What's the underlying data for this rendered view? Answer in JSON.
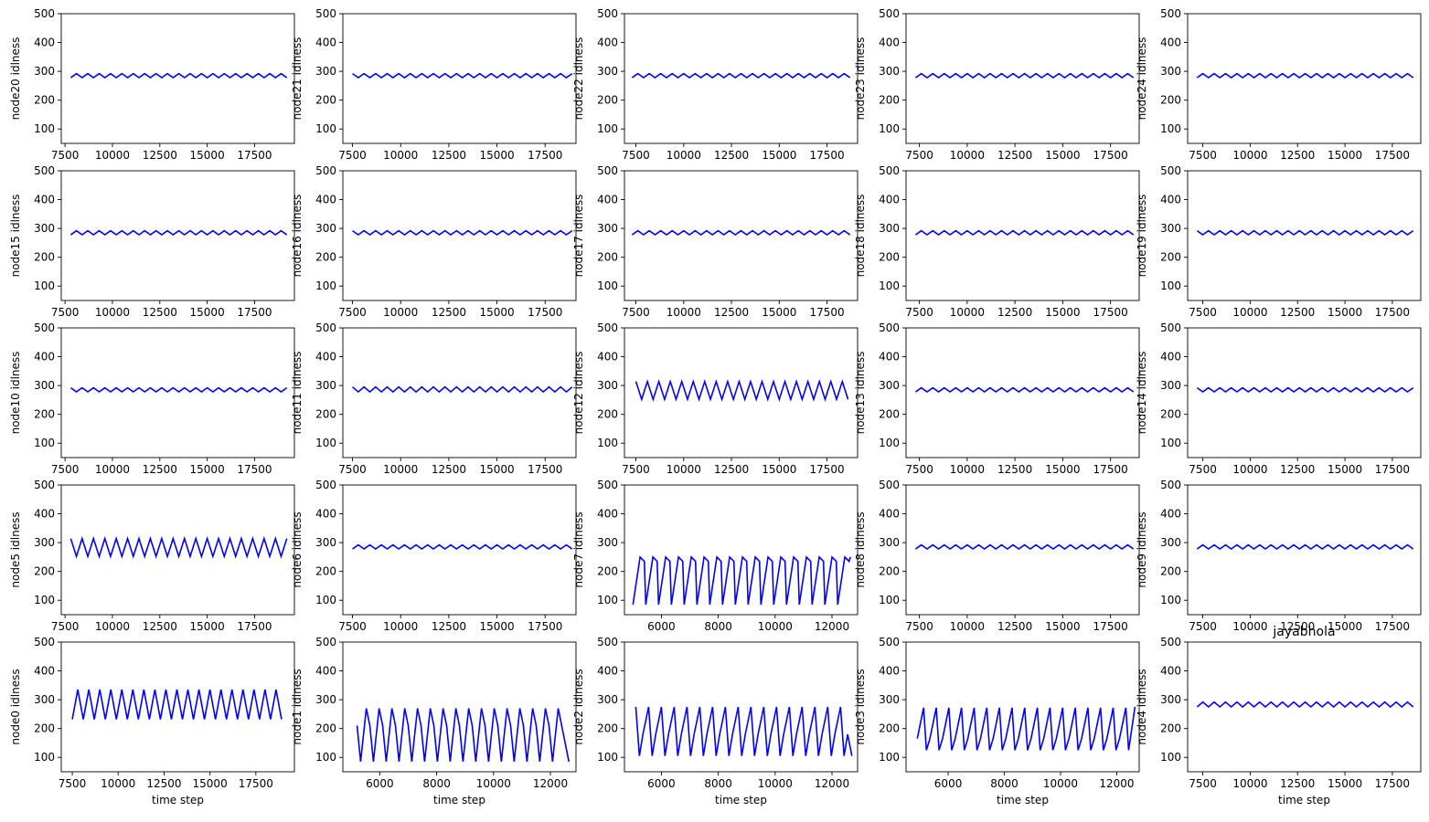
{
  "figure": {
    "line_color": "#0000ff",
    "axis_color": "#000000",
    "background": "#ffffff"
  },
  "chart_data": [
    {
      "type": "line",
      "row": 0,
      "col": 0,
      "ylabel": "node20 idlness",
      "xlabel": "",
      "title": "",
      "xlim": [
        7300,
        19600
      ],
      "xticks": [
        7500,
        10000,
        12500,
        15000,
        17500
      ],
      "ylim": [
        50,
        500
      ],
      "yticks": [
        100,
        200,
        300,
        400,
        500
      ],
      "pattern": {
        "x_start": 7800,
        "x_end": 19400,
        "cycle": 600,
        "y_low": 278,
        "y_high": 292,
        "first": "low",
        "last": "low"
      }
    },
    {
      "type": "line",
      "row": 0,
      "col": 1,
      "ylabel": "node21 idlness",
      "xlabel": "",
      "title": "",
      "xlim": [
        7000,
        19100
      ],
      "xticks": [
        7500,
        10000,
        12500,
        15000,
        17500
      ],
      "ylim": [
        50,
        500
      ],
      "yticks": [
        100,
        200,
        300,
        400,
        500
      ],
      "pattern": {
        "x_start": 7500,
        "x_end": 18900,
        "cycle": 600,
        "y_low": 278,
        "y_high": 292,
        "first": "high",
        "last": "high"
      }
    },
    {
      "type": "line",
      "row": 0,
      "col": 2,
      "ylabel": "node22 idlness",
      "xlabel": "",
      "title": "",
      "xlim": [
        6900,
        19100
      ],
      "xticks": [
        7500,
        10000,
        12500,
        15000,
        17500
      ],
      "ylim": [
        50,
        500
      ],
      "yticks": [
        100,
        200,
        300,
        400,
        500
      ],
      "pattern": {
        "x_start": 7300,
        "x_end": 18800,
        "cycle": 600,
        "y_low": 278,
        "y_high": 292,
        "first": "low",
        "last": "low"
      }
    },
    {
      "type": "line",
      "row": 0,
      "col": 3,
      "ylabel": "node23 idlness",
      "xlabel": "",
      "title": "",
      "xlim": [
        6800,
        19000
      ],
      "xticks": [
        7500,
        10000,
        12500,
        15000,
        17500
      ],
      "ylim": [
        50,
        500
      ],
      "yticks": [
        100,
        200,
        300,
        400,
        500
      ],
      "pattern": {
        "x_start": 7300,
        "x_end": 18700,
        "cycle": 600,
        "y_low": 278,
        "y_high": 292,
        "first": "low",
        "last": "low"
      }
    },
    {
      "type": "line",
      "row": 0,
      "col": 4,
      "ylabel": "node24 idlness",
      "xlabel": "",
      "title": "",
      "xlim": [
        6700,
        19000
      ],
      "xticks": [
        7500,
        10000,
        12500,
        15000,
        17500
      ],
      "ylim": [
        50,
        500
      ],
      "yticks": [
        100,
        200,
        300,
        400,
        500
      ],
      "pattern": {
        "x_start": 7200,
        "x_end": 18700,
        "cycle": 600,
        "y_low": 278,
        "y_high": 292,
        "first": "low",
        "last": "low"
      }
    },
    {
      "type": "line",
      "row": 1,
      "col": 0,
      "ylabel": "node15 idlness",
      "xlabel": "",
      "title": "",
      "xlim": [
        7300,
        19600
      ],
      "xticks": [
        7500,
        10000,
        12500,
        15000,
        17500
      ],
      "ylim": [
        50,
        500
      ],
      "yticks": [
        100,
        200,
        300,
        400,
        500
      ],
      "pattern": {
        "x_start": 7800,
        "x_end": 19400,
        "cycle": 600,
        "y_low": 278,
        "y_high": 292,
        "first": "low",
        "last": "low"
      }
    },
    {
      "type": "line",
      "row": 1,
      "col": 1,
      "ylabel": "node16 idlness",
      "xlabel": "",
      "title": "",
      "xlim": [
        7000,
        19100
      ],
      "xticks": [
        7500,
        10000,
        12500,
        15000,
        17500
      ],
      "ylim": [
        50,
        500
      ],
      "yticks": [
        100,
        200,
        300,
        400,
        500
      ],
      "pattern": {
        "x_start": 7500,
        "x_end": 18900,
        "cycle": 600,
        "y_low": 278,
        "y_high": 292,
        "first": "high",
        "last": "high"
      }
    },
    {
      "type": "line",
      "row": 1,
      "col": 2,
      "ylabel": "node17 idlness",
      "xlabel": "",
      "title": "",
      "xlim": [
        6900,
        19100
      ],
      "xticks": [
        7500,
        10000,
        12500,
        15000,
        17500
      ],
      "ylim": [
        50,
        500
      ],
      "yticks": [
        100,
        200,
        300,
        400,
        500
      ],
      "pattern": {
        "x_start": 7300,
        "x_end": 18800,
        "cycle": 600,
        "y_low": 278,
        "y_high": 292,
        "first": "low",
        "last": "low"
      }
    },
    {
      "type": "line",
      "row": 1,
      "col": 3,
      "ylabel": "node18 idlness",
      "xlabel": "",
      "title": "",
      "xlim": [
        6800,
        19000
      ],
      "xticks": [
        7500,
        10000,
        12500,
        15000,
        17500
      ],
      "ylim": [
        50,
        500
      ],
      "yticks": [
        100,
        200,
        300,
        400,
        500
      ],
      "pattern": {
        "x_start": 7300,
        "x_end": 18700,
        "cycle": 600,
        "y_low": 278,
        "y_high": 292,
        "first": "low",
        "last": "low"
      }
    },
    {
      "type": "line",
      "row": 1,
      "col": 4,
      "ylabel": "node19 idlness",
      "xlabel": "",
      "title": "",
      "xlim": [
        6700,
        19000
      ],
      "xticks": [
        7500,
        10000,
        12500,
        15000,
        17500
      ],
      "ylim": [
        50,
        500
      ],
      "yticks": [
        100,
        200,
        300,
        400,
        500
      ],
      "pattern": {
        "x_start": 7200,
        "x_end": 18700,
        "cycle": 600,
        "y_low": 278,
        "y_high": 292,
        "first": "high",
        "last": "high"
      }
    },
    {
      "type": "line",
      "row": 2,
      "col": 0,
      "ylabel": "node10 idlness",
      "xlabel": "",
      "title": "",
      "xlim": [
        7300,
        19600
      ],
      "xticks": [
        7500,
        10000,
        12500,
        15000,
        17500
      ],
      "ylim": [
        50,
        500
      ],
      "yticks": [
        100,
        200,
        300,
        400,
        500
      ],
      "pattern": {
        "x_start": 7800,
        "x_end": 19400,
        "cycle": 600,
        "y_low": 278,
        "y_high": 292,
        "first": "high",
        "last": "high"
      }
    },
    {
      "type": "line",
      "row": 2,
      "col": 1,
      "ylabel": "node11 idlness",
      "xlabel": "",
      "title": "",
      "xlim": [
        7000,
        19100
      ],
      "xticks": [
        7500,
        10000,
        12500,
        15000,
        17500
      ],
      "ylim": [
        50,
        500
      ],
      "yticks": [
        100,
        200,
        300,
        400,
        500
      ],
      "pattern": {
        "x_start": 7500,
        "x_end": 18900,
        "cycle": 600,
        "y_low": 278,
        "y_high": 295,
        "first": "high",
        "last": "high"
      }
    },
    {
      "type": "line",
      "row": 2,
      "col": 2,
      "ylabel": "node12 idlness",
      "xlabel": "",
      "title": "",
      "xlim": [
        6900,
        19100
      ],
      "xticks": [
        7500,
        10000,
        12500,
        15000,
        17500
      ],
      "ylim": [
        50,
        500
      ],
      "yticks": [
        100,
        200,
        300,
        400,
        500
      ],
      "pattern": {
        "x_start": 7500,
        "x_end": 18800,
        "cycle": 600,
        "y_low": 252,
        "y_high": 314,
        "first": "high",
        "last": "high"
      }
    },
    {
      "type": "line",
      "row": 2,
      "col": 3,
      "ylabel": "node13 idlness",
      "xlabel": "",
      "title": "",
      "xlim": [
        6800,
        19000
      ],
      "xticks": [
        7500,
        10000,
        12500,
        15000,
        17500
      ],
      "ylim": [
        50,
        500
      ],
      "yticks": [
        100,
        200,
        300,
        400,
        500
      ],
      "pattern": {
        "x_start": 7300,
        "x_end": 18700,
        "cycle": 600,
        "y_low": 278,
        "y_high": 292,
        "first": "low",
        "last": "low"
      }
    },
    {
      "type": "line",
      "row": 2,
      "col": 4,
      "ylabel": "node14 idlness",
      "xlabel": "",
      "title": "",
      "xlim": [
        6700,
        19000
      ],
      "xticks": [
        7500,
        10000,
        12500,
        15000,
        17500
      ],
      "ylim": [
        50,
        500
      ],
      "yticks": [
        100,
        200,
        300,
        400,
        500
      ],
      "pattern": {
        "x_start": 7200,
        "x_end": 18700,
        "cycle": 600,
        "y_low": 278,
        "y_high": 292,
        "first": "high",
        "last": "high"
      }
    },
    {
      "type": "line",
      "row": 3,
      "col": 0,
      "ylabel": "node5 idlness",
      "xlabel": "",
      "title": "",
      "xlim": [
        7300,
        19600
      ],
      "xticks": [
        7500,
        10000,
        12500,
        15000,
        17500
      ],
      "ylim": [
        50,
        500
      ],
      "yticks": [
        100,
        200,
        300,
        400,
        500
      ],
      "pattern": {
        "x_start": 7800,
        "x_end": 19400,
        "cycle": 600,
        "y_low": 252,
        "y_high": 314,
        "first": "high",
        "last": "high"
      }
    },
    {
      "type": "line",
      "row": 3,
      "col": 1,
      "ylabel": "node6 idlness",
      "xlabel": "",
      "title": "",
      "xlim": [
        7000,
        19100
      ],
      "xticks": [
        7500,
        10000,
        12500,
        15000,
        17500
      ],
      "ylim": [
        50,
        500
      ],
      "yticks": [
        100,
        200,
        300,
        400,
        500
      ],
      "pattern": {
        "x_start": 7500,
        "x_end": 18900,
        "cycle": 600,
        "y_low": 278,
        "y_high": 292,
        "first": "low",
        "last": "low"
      }
    },
    {
      "type": "line",
      "row": 3,
      "col": 2,
      "ylabel": "node7 idlness",
      "xlabel": "",
      "title": "",
      "xlim": [
        4700,
        12900
      ],
      "xticks": [
        6000,
        8000,
        10000,
        12000
      ],
      "ylim": [
        50,
        500
      ],
      "yticks": [
        100,
        200,
        300,
        400,
        500
      ],
      "sawtooth": {
        "x_start": 5000,
        "period": 450,
        "offsets": [
          0,
          250,
          400,
          450
        ],
        "values": [
          85,
          250,
          235,
          85
        ],
        "count": 17,
        "end_x": 12650,
        "end_y": 250
      }
    },
    {
      "type": "line",
      "row": 3,
      "col": 3,
      "ylabel": "node8 idlness",
      "xlabel": "",
      "title": "",
      "xlim": [
        6800,
        19000
      ],
      "xticks": [
        7500,
        10000,
        12500,
        15000,
        17500
      ],
      "ylim": [
        50,
        500
      ],
      "yticks": [
        100,
        200,
        300,
        400,
        500
      ],
      "pattern": {
        "x_start": 7300,
        "x_end": 18700,
        "cycle": 600,
        "y_low": 278,
        "y_high": 292,
        "first": "low",
        "last": "low"
      }
    },
    {
      "type": "line",
      "row": 3,
      "col": 4,
      "ylabel": "node9 idlness",
      "xlabel": "",
      "title": "",
      "xlim": [
        6700,
        19000
      ],
      "xticks": [
        7500,
        10000,
        12500,
        15000,
        17500
      ],
      "ylim": [
        50,
        500
      ],
      "yticks": [
        100,
        200,
        300,
        400,
        500
      ],
      "pattern": {
        "x_start": 7200,
        "x_end": 18700,
        "cycle": 600,
        "y_low": 278,
        "y_high": 292,
        "first": "low",
        "last": "low"
      }
    },
    {
      "type": "line",
      "row": 4,
      "col": 0,
      "ylabel": "node0 idlness",
      "xlabel": "time step",
      "title": "",
      "xlim": [
        6900,
        19600
      ],
      "xticks": [
        7500,
        10000,
        12500,
        15000,
        17500
      ],
      "ylim": [
        50,
        500
      ],
      "yticks": [
        100,
        200,
        300,
        400,
        500
      ],
      "pattern": {
        "x_start": 7500,
        "x_end": 19000,
        "cycle": 600,
        "y_low": 232,
        "y_high": 335,
        "first": "low",
        "last": "low"
      }
    },
    {
      "type": "line",
      "row": 4,
      "col": 1,
      "ylabel": "node1 idlness",
      "xlabel": "time step",
      "title": "",
      "xlim": [
        4700,
        12900
      ],
      "xticks": [
        6000,
        8000,
        10000,
        12000
      ],
      "ylim": [
        50,
        500
      ],
      "yticks": [
        100,
        200,
        300,
        400,
        500
      ],
      "sawtooth": {
        "x_start": 5200,
        "period": 450,
        "offsets": [
          0,
          125,
          325,
          450
        ],
        "values": [
          210,
          85,
          270,
          210
        ],
        "count": 16,
        "end_x": 12650,
        "end_y": 85
      }
    },
    {
      "type": "line",
      "row": 4,
      "col": 2,
      "ylabel": "node2 idlness",
      "xlabel": "time step",
      "title": "",
      "xlim": [
        4700,
        12900
      ],
      "xticks": [
        6000,
        8000,
        10000,
        12000
      ],
      "ylim": [
        50,
        500
      ],
      "yticks": [
        100,
        200,
        300,
        400,
        500
      ],
      "sawtooth": {
        "x_start": 5100,
        "period": 450,
        "offsets": [
          0,
          125,
          250,
          450
        ],
        "values": [
          275,
          105,
          180,
          275
        ],
        "count": 17,
        "end_x": 12700,
        "end_y": 105
      }
    },
    {
      "type": "line",
      "row": 4,
      "col": 3,
      "ylabel": "node3 idlness",
      "xlabel": "time step",
      "title": "",
      "xlim": [
        4500,
        12800
      ],
      "xticks": [
        6000,
        8000,
        10000,
        12000
      ],
      "ylim": [
        50,
        500
      ],
      "yticks": [
        100,
        200,
        300,
        400,
        500
      ],
      "sawtooth": {
        "x_start": 4900,
        "period": 450,
        "offsets": [
          0,
          225,
          325,
          450
        ],
        "values": [
          165,
          272,
          125,
          165
        ],
        "count": 17,
        "end_x": 12650,
        "end_y": 275
      }
    },
    {
      "type": "line",
      "row": 4,
      "col": 4,
      "ylabel": "node4 idlness",
      "xlabel": "time step",
      "title": "jayabhola",
      "xlim": [
        6700,
        19000
      ],
      "xticks": [
        7500,
        10000,
        12500,
        15000,
        17500
      ],
      "ylim": [
        50,
        500
      ],
      "yticks": [
        100,
        200,
        300,
        400,
        500
      ],
      "pattern": {
        "x_start": 7200,
        "x_end": 18700,
        "cycle": 600,
        "y_low": 275,
        "y_high": 292,
        "first": "low",
        "last": "low"
      }
    }
  ]
}
